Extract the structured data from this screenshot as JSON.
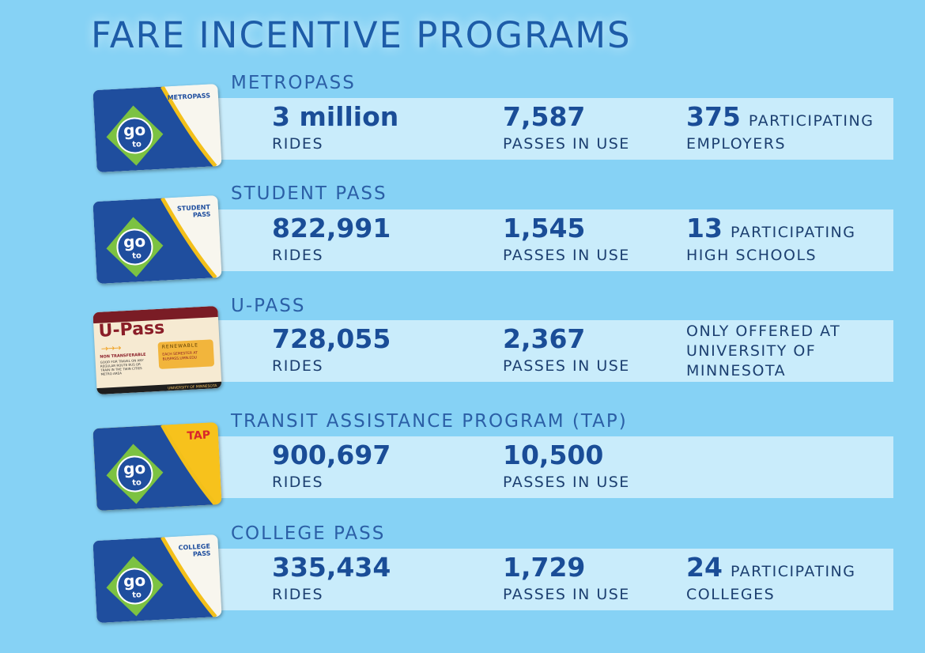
{
  "title": "FARE INCENTIVE PROGRAMS",
  "programs": [
    {
      "name": "METROPASS",
      "card": {
        "label": "METROPASS",
        "logo": [
          "go",
          "to"
        ]
      },
      "stats": [
        {
          "number": "3 million",
          "label": "RIDES"
        },
        {
          "number": "7,587",
          "label": "PASSES IN USE"
        },
        {
          "number": "375",
          "unit": "PARTICIPATING",
          "label": "EMPLOYERS"
        }
      ]
    },
    {
      "name": "STUDENT PASS",
      "card": {
        "label": "STUDENT PASS",
        "logo": [
          "go",
          "to"
        ]
      },
      "stats": [
        {
          "number": "822,991",
          "label": "RIDES"
        },
        {
          "number": "1,545",
          "label": "PASSES IN USE"
        },
        {
          "number": "13",
          "unit": "PARTICIPATING",
          "label": "HIGH SCHOOLS"
        }
      ]
    },
    {
      "name": "U-PASS",
      "card": {
        "title": "U-Pass",
        "badge": "RENEWABLE",
        "restriction": "NON TRANSFERABLE",
        "terms": "GOOD FOR TRAVEL ON ANY REGULAR ROUTE BUS OR TRAIN IN THE TWIN CITIES METRO AREA",
        "renew": "EACH SEMESTER AT BUSPASS.UMN.EDU",
        "issuer": "UNIVERSITY OF MINNESOTA"
      },
      "stats": [
        {
          "number": "728,055",
          "label": "RIDES"
        },
        {
          "number": "2,367",
          "label": "PASSES IN USE"
        },
        {
          "note": "ONLY OFFERED AT UNIVERSITY OF MINNESOTA"
        }
      ]
    },
    {
      "name": "TRANSIT ASSISTANCE PROGRAM (TAP)",
      "card": {
        "label": "TAP",
        "logo": [
          "go",
          "to"
        ]
      },
      "stats": [
        {
          "number": "900,697",
          "label": "RIDES"
        },
        {
          "number": "10,500",
          "label": "PASSES IN USE"
        }
      ]
    },
    {
      "name": "COLLEGE PASS",
      "card": {
        "label": "COLLEGE PASS",
        "logo": [
          "go",
          "to"
        ]
      },
      "stats": [
        {
          "number": "335,434",
          "label": "RIDES"
        },
        {
          "number": "1,729",
          "label": "PASSES IN USE"
        },
        {
          "number": "24",
          "unit": "PARTICIPATING",
          "label": "COLLEGES"
        }
      ]
    }
  ]
}
